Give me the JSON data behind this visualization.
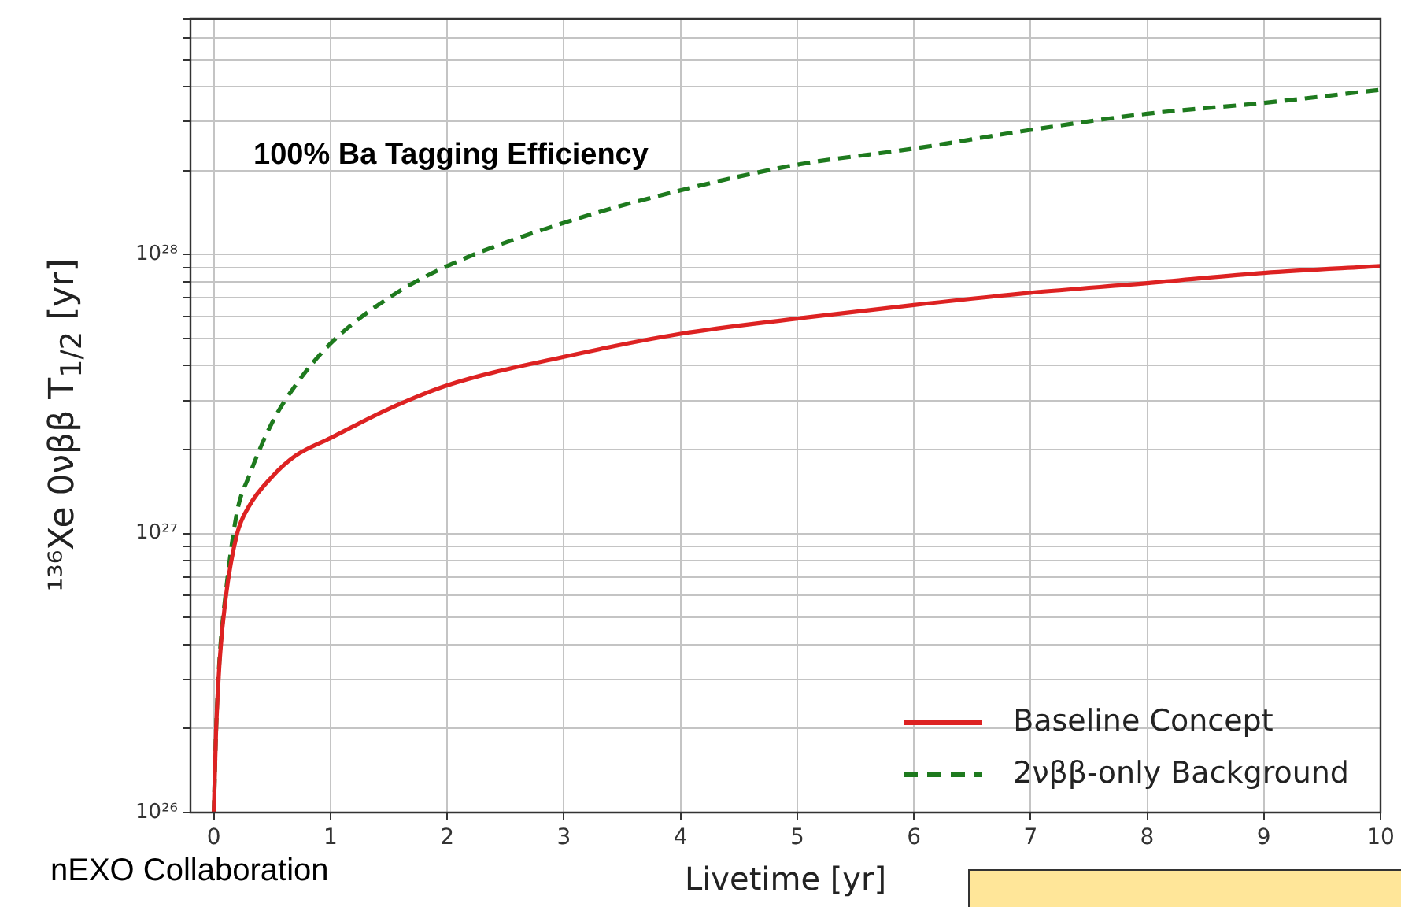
{
  "chart_data": {
    "type": "line",
    "xlabel": "Livetime [yr]",
    "ylabel": "¹³⁶Xe  0νββ  T$_{1/2}$ [yr]",
    "annotations": [
      "100% Ba Tagging Efficiency",
      "nEXO Collaboration"
    ],
    "series": [
      {
        "name": "Baseline Concept",
        "color": "#dd2222",
        "line_style": "solid",
        "x": [
          0,
          0.02,
          0.05,
          0.1,
          0.2,
          0.3,
          0.5,
          0.7,
          1,
          1.5,
          2,
          3,
          4,
          5,
          6,
          7,
          8,
          9,
          10
        ],
        "values": [
          1e+26,
          2e+26,
          3.5e+26,
          5.8e+26,
          1e+27,
          1.25e+27,
          1.6e+27,
          1.9e+27,
          2.2e+27,
          2.8e+27,
          3.4e+27,
          4.3e+27,
          5.2e+27,
          5.9e+27,
          6.6e+27,
          7.3e+27,
          7.9e+27,
          8.6e+27,
          9.1e+27
        ]
      },
      {
        "name": "2νββ-only Background",
        "color": "#1e7a1e",
        "line_style": "dashed",
        "x": [
          0,
          0.02,
          0.05,
          0.1,
          0.2,
          0.3,
          0.5,
          0.7,
          1,
          1.5,
          2,
          3,
          4,
          5,
          6,
          7,
          8,
          9,
          10
        ],
        "values": [
          1e+26,
          2e+26,
          3.6e+26,
          6e+26,
          1.2e+27,
          1.6e+27,
          2.5e+27,
          3.4e+27,
          4.8e+27,
          7e+27,
          9.1e+27,
          1.3e+28,
          1.7e+28,
          2.1e+28,
          2.4e+28,
          2.8e+28,
          3.2e+28,
          3.5e+28,
          3.9e+28
        ]
      }
    ],
    "xlim": [
      -0.2,
      10
    ],
    "xticks": [
      0,
      1,
      2,
      3,
      4,
      5,
      6,
      7,
      8,
      9,
      10
    ],
    "ylim": [
      1e+26,
      7e+28
    ],
    "yticks": [
      {
        "value": 1e+26,
        "label": "10²⁶"
      },
      {
        "value": 2e+26,
        "label": null
      },
      {
        "value": 3e+26,
        "label": null
      },
      {
        "value": 4e+26,
        "label": null
      },
      {
        "value": 5e+26,
        "label": null
      },
      {
        "value": 6e+26,
        "label": null
      },
      {
        "value": 7e+26,
        "label": null
      },
      {
        "value": 8e+26,
        "label": null
      },
      {
        "value": 9e+26,
        "label": null
      },
      {
        "value": 1e+27,
        "label": "10²⁷"
      },
      {
        "value": 2e+27,
        "label": null
      },
      {
        "value": 3e+27,
        "label": null
      },
      {
        "value": 4e+27,
        "label": null
      },
      {
        "value": 5e+27,
        "label": null
      },
      {
        "value": 6e+27,
        "label": null
      },
      {
        "value": 7e+27,
        "label": null
      },
      {
        "value": 8e+27,
        "label": null
      },
      {
        "value": 9e+27,
        "label": null
      },
      {
        "value": 1e+28,
        "label": "10²⁸"
      },
      {
        "value": 2e+28,
        "label": null
      },
      {
        "value": 3e+28,
        "label": null
      },
      {
        "value": 4e+28,
        "label": null
      },
      {
        "value": 5e+28,
        "label": null
      },
      {
        "value": 6e+28,
        "label": null
      },
      {
        "value": 7e+28,
        "label": null
      }
    ],
    "log": "y",
    "grid": true,
    "legend": "bottom right"
  }
}
